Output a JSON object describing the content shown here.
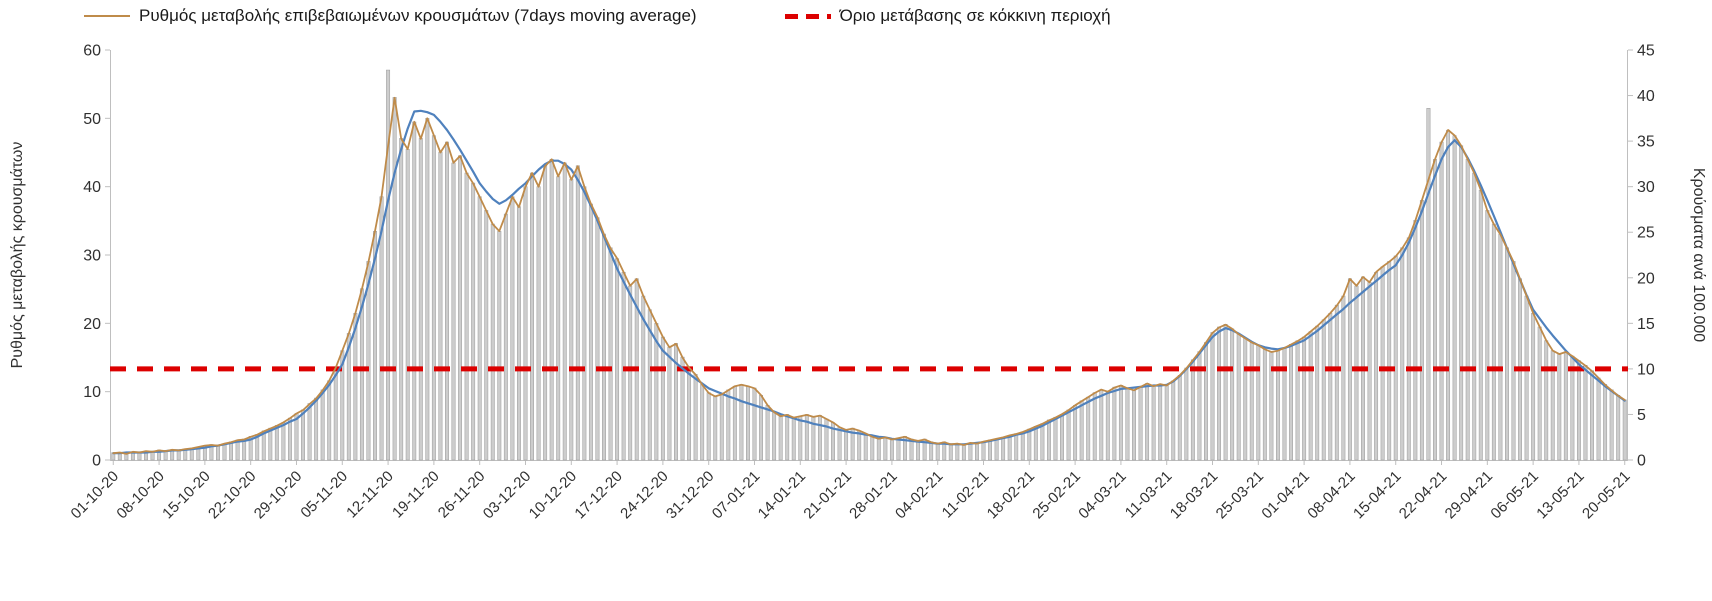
{
  "legend": {
    "rate_label": "Ρυθμός μεταβολής επιβεβαιωμένων κρουσμάτων (7days moving average)",
    "threshold_label": "Όριο μετάβασης σε κόκκινη περιοχή"
  },
  "axes": {
    "left_title": "Ρυθμός μεταβολής κρουσμάτων",
    "right_title": "Κρούσματα ανά 100.000",
    "left_ticks": [
      0,
      10,
      20,
      30,
      40,
      50,
      60
    ],
    "right_ticks": [
      0,
      5,
      10,
      15,
      20,
      25,
      30,
      35,
      40,
      45
    ],
    "left_range": [
      0,
      60
    ],
    "right_range": [
      0,
      45
    ]
  },
  "colors": {
    "axis": "#bfbfbf",
    "text": "#303030",
    "rate": "#bf8b4a",
    "trend": "#4f81bd",
    "threshold": "#dc0000",
    "bar_fill": "#cdcdcd",
    "bar_stroke": "#999999",
    "background": "#ffffff"
  },
  "chart_data": {
    "type": "bar+line combo, dual axis",
    "title": "",
    "n_days": 232,
    "bar_width": 3.4,
    "grid": "off",
    "legend_position": "top",
    "x_tick_labels": [
      "01-10-20",
      "08-10-20",
      "15-10-20",
      "22-10-20",
      "29-10-20",
      "05-11-20",
      "12-11-20",
      "19-11-20",
      "26-11-20",
      "03-12-20",
      "10-12-20",
      "17-12-20",
      "24-12-20",
      "31-12-20",
      "07-01-21",
      "14-01-21",
      "21-01-21",
      "28-01-21",
      "04-02-21",
      "11-02-21",
      "18-02-21",
      "25-02-21",
      "04-03-21",
      "11-03-21",
      "18-03-21",
      "25-03-21",
      "01-04-21",
      "08-04-21",
      "15-04-21",
      "22-04-21",
      "29-04-21",
      "06-05-21",
      "13-05-21",
      "20-05-21"
    ],
    "x_tick_day_index": [
      0,
      7,
      14,
      21,
      28,
      35,
      42,
      49,
      56,
      63,
      70,
      77,
      84,
      91,
      98,
      105,
      112,
      119,
      126,
      133,
      140,
      147,
      154,
      161,
      168,
      175,
      182,
      189,
      196,
      203,
      210,
      217,
      224,
      231
    ],
    "threshold": {
      "label": "Όριο μετάβασης σε κόκκινη περιοχή",
      "value_right_axis": 10,
      "value_left_axis_equivalent": 13.33,
      "color": "#dc0000",
      "style": "dashed"
    },
    "series": [
      {
        "id": "daily-cases",
        "name": "Κρούσματα ανά 100.000 (gray daily bars, right axis)",
        "type": "bar",
        "axis": "right",
        "color": "#cdcdcd",
        "stroke": "#999999",
        "values": [
          0.8,
          0.8,
          0.7,
          0.9,
          0.8,
          1.0,
          0.9,
          1.1,
          1.0,
          1.1,
          1.1,
          1.2,
          1.3,
          1.4,
          1.6,
          1.7,
          1.6,
          1.8,
          2.0,
          2.2,
          2.3,
          2.6,
          2.8,
          3.2,
          3.5,
          3.8,
          4.1,
          4.6,
          5.1,
          5.5,
          6.2,
          6.8,
          7.7,
          8.7,
          10.1,
          12.0,
          13.9,
          16.1,
          18.8,
          21.8,
          25.1,
          28.9,
          42.8,
          39.8,
          35.3,
          34.1,
          37.1,
          35.3,
          37.5,
          35.6,
          33.8,
          34.9,
          32.6,
          33.4,
          31.5,
          30.4,
          28.9,
          27.4,
          25.9,
          25.1,
          27.0,
          28.9,
          27.8,
          30.0,
          31.5,
          30.0,
          32.3,
          33.0,
          31.1,
          32.6,
          30.8,
          32.3,
          30.0,
          28.1,
          26.6,
          24.8,
          23.3,
          22.1,
          20.6,
          19.1,
          19.9,
          18.0,
          16.5,
          15.0,
          13.5,
          12.4,
          12.8,
          11.3,
          10.1,
          9.4,
          8.3,
          7.4,
          7.0,
          7.2,
          7.7,
          8.1,
          8.3,
          8.1,
          7.9,
          7.1,
          6.0,
          5.3,
          4.8,
          5.0,
          4.7,
          4.8,
          5.0,
          4.7,
          4.9,
          4.5,
          4.1,
          3.6,
          3.3,
          3.5,
          3.2,
          2.9,
          2.6,
          2.3,
          2.5,
          2.3,
          2.4,
          2.6,
          2.3,
          2.1,
          2.3,
          2.0,
          1.8,
          2.0,
          1.7,
          1.8,
          1.7,
          1.9,
          1.8,
          2.0,
          2.2,
          2.3,
          2.5,
          2.7,
          2.9,
          3.1,
          3.4,
          3.7,
          4.0,
          4.4,
          4.7,
          5.0,
          5.5,
          6.0,
          6.5,
          6.9,
          7.4,
          7.7,
          7.5,
          8.0,
          8.2,
          7.9,
          7.7,
          8.0,
          8.4,
          8.1,
          8.3,
          8.2,
          8.7,
          9.3,
          10.1,
          11.0,
          11.9,
          12.9,
          14.0,
          14.6,
          14.9,
          14.4,
          13.8,
          13.4,
          12.9,
          12.6,
          12.2,
          11.9,
          12.0,
          12.3,
          12.7,
          13.1,
          13.5,
          14.1,
          14.7,
          15.4,
          16.1,
          17.0,
          18.0,
          19.9,
          19.1,
          20.1,
          19.5,
          20.6,
          21.2,
          21.8,
          22.4,
          23.3,
          24.4,
          26.3,
          28.5,
          38.6,
          33.0,
          34.9,
          36.2,
          35.6,
          34.5,
          33.0,
          31.5,
          29.6,
          27.4,
          25.9,
          24.8,
          23.3,
          21.8,
          19.9,
          18.0,
          16.1,
          14.6,
          13.1,
          12.0,
          11.6,
          11.9,
          11.4,
          10.9,
          10.4,
          9.8,
          9.0,
          8.3,
          7.7,
          7.1,
          6.6
        ]
      },
      {
        "id": "trend",
        "name": "smoothed trend (unlabeled blue line, left axis)",
        "type": "line",
        "axis": "left",
        "color": "#4f81bd",
        "width": 2.2,
        "values": [
          1.0,
          1.0,
          1.1,
          1.1,
          1.1,
          1.1,
          1.2,
          1.2,
          1.3,
          1.4,
          1.4,
          1.5,
          1.6,
          1.7,
          1.8,
          2.0,
          2.1,
          2.3,
          2.5,
          2.7,
          2.8,
          3.0,
          3.4,
          3.9,
          4.3,
          4.7,
          5.1,
          5.6,
          6.0,
          6.8,
          7.7,
          8.7,
          9.8,
          11.0,
          12.4,
          14.0,
          16.5,
          19.3,
          22.4,
          25.8,
          29.5,
          33.5,
          38.0,
          42.0,
          45.5,
          48.5,
          51.0,
          51.1,
          50.9,
          50.5,
          49.5,
          48.3,
          46.9,
          45.4,
          43.8,
          42.2,
          40.5,
          39.3,
          38.2,
          37.5,
          38.0,
          38.8,
          39.7,
          40.5,
          41.5,
          42.5,
          43.3,
          43.8,
          43.8,
          43.3,
          42.5,
          41.0,
          39.2,
          37.2,
          35.0,
          32.7,
          30.4,
          28.0,
          26.1,
          24.2,
          22.4,
          20.6,
          19.0,
          17.4,
          16.0,
          15.1,
          14.2,
          13.4,
          12.6,
          11.9,
          11.2,
          10.5,
          10.1,
          9.7,
          9.3,
          9.0,
          8.6,
          8.3,
          8.0,
          7.7,
          7.4,
          7.1,
          6.7,
          6.4,
          6.1,
          5.8,
          5.6,
          5.3,
          5.1,
          4.9,
          4.6,
          4.4,
          4.2,
          4.0,
          3.9,
          3.7,
          3.6,
          3.4,
          3.3,
          3.1,
          3.0,
          2.9,
          2.8,
          2.7,
          2.6,
          2.5,
          2.4,
          2.4,
          2.3,
          2.3,
          2.3,
          2.4,
          2.5,
          2.6,
          2.8,
          3.0,
          3.2,
          3.4,
          3.7,
          3.9,
          4.2,
          4.6,
          5.0,
          5.5,
          6.0,
          6.5,
          7.0,
          7.5,
          8.0,
          8.5,
          9.0,
          9.4,
          9.8,
          10.1,
          10.4,
          10.5,
          10.6,
          10.7,
          10.8,
          10.9,
          10.9,
          11.0,
          11.5,
          12.3,
          13.3,
          14.4,
          15.6,
          16.8,
          18.0,
          18.8,
          19.3,
          19.0,
          18.5,
          17.9,
          17.3,
          16.8,
          16.5,
          16.3,
          16.2,
          16.4,
          16.7,
          17.1,
          17.5,
          18.2,
          18.9,
          19.7,
          20.5,
          21.3,
          22.1,
          23.0,
          23.8,
          24.6,
          25.4,
          26.2,
          27.0,
          27.8,
          28.5,
          30.0,
          31.8,
          34.0,
          36.4,
          39.0,
          41.6,
          44.0,
          45.8,
          46.8,
          45.8,
          44.2,
          42.3,
          40.2,
          38.0,
          35.7,
          33.4,
          31.0,
          28.7,
          26.4,
          24.1,
          22.0,
          20.7,
          19.4,
          18.2,
          17.1,
          16.0,
          15.0,
          14.0,
          13.2,
          12.4,
          11.6,
          10.8,
          10.1,
          9.4,
          8.7
        ]
      },
      {
        "id": "rate",
        "name": "Ρυθμός μεταβολής επιβεβαιωμένων κρουσμάτων (7days moving average)",
        "type": "line",
        "axis": "left",
        "color": "#bf8b4a",
        "width": 1.8,
        "values": [
          1.0,
          1.1,
          0.9,
          1.2,
          1.1,
          1.3,
          1.2,
          1.4,
          1.3,
          1.5,
          1.4,
          1.6,
          1.7,
          1.9,
          2.1,
          2.2,
          2.1,
          2.4,
          2.6,
          2.9,
          3.0,
          3.4,
          3.7,
          4.2,
          4.6,
          5.0,
          5.5,
          6.1,
          6.8,
          7.3,
          8.2,
          9.0,
          10.2,
          11.6,
          13.5,
          16.0,
          18.5,
          21.5,
          25.0,
          29.0,
          33.5,
          38.5,
          46.0,
          53.0,
          47.0,
          45.5,
          49.5,
          47.0,
          50.0,
          47.5,
          45.0,
          46.5,
          43.5,
          44.5,
          42.0,
          40.5,
          38.5,
          36.5,
          34.5,
          33.5,
          36.0,
          38.5,
          37.0,
          40.0,
          42.0,
          40.0,
          43.0,
          44.0,
          41.5,
          43.5,
          41.0,
          43.0,
          40.0,
          37.5,
          35.5,
          33.0,
          31.0,
          29.5,
          27.5,
          25.5,
          26.5,
          24.0,
          22.0,
          20.0,
          18.0,
          16.5,
          17.0,
          15.0,
          13.5,
          12.5,
          11.0,
          9.8,
          9.3,
          9.6,
          10.2,
          10.8,
          11.0,
          10.8,
          10.5,
          9.5,
          8.0,
          7.0,
          6.4,
          6.6,
          6.2,
          6.4,
          6.6,
          6.3,
          6.5,
          6.0,
          5.5,
          4.8,
          4.4,
          4.6,
          4.3,
          3.9,
          3.4,
          3.1,
          3.3,
          3.0,
          3.2,
          3.4,
          3.0,
          2.8,
          3.0,
          2.6,
          2.4,
          2.6,
          2.3,
          2.4,
          2.2,
          2.5,
          2.4,
          2.7,
          2.9,
          3.1,
          3.3,
          3.6,
          3.8,
          4.1,
          4.5,
          4.9,
          5.3,
          5.8,
          6.2,
          6.7,
          7.3,
          8.0,
          8.6,
          9.2,
          9.8,
          10.3,
          10.0,
          10.6,
          10.9,
          10.5,
          10.2,
          10.7,
          11.2,
          10.8,
          11.1,
          10.9,
          11.6,
          12.4,
          13.4,
          14.6,
          15.8,
          17.2,
          18.6,
          19.4,
          19.8,
          19.2,
          18.4,
          17.8,
          17.2,
          16.8,
          16.2,
          15.8,
          16.0,
          16.4,
          16.9,
          17.4,
          18.0,
          18.8,
          19.6,
          20.5,
          21.5,
          22.6,
          24.0,
          26.5,
          25.5,
          26.8,
          26.0,
          27.5,
          28.3,
          29.0,
          29.8,
          31.0,
          32.5,
          35.0,
          38.0,
          41.0,
          44.0,
          46.5,
          48.3,
          47.5,
          46.0,
          44.0,
          42.0,
          39.5,
          36.5,
          34.5,
          33.0,
          31.0,
          29.0,
          26.5,
          24.0,
          21.5,
          19.5,
          17.5,
          16.0,
          15.5,
          15.8,
          15.2,
          14.5,
          13.8,
          13.0,
          12.0,
          11.0,
          10.2,
          9.4,
          8.8
        ]
      }
    ]
  }
}
